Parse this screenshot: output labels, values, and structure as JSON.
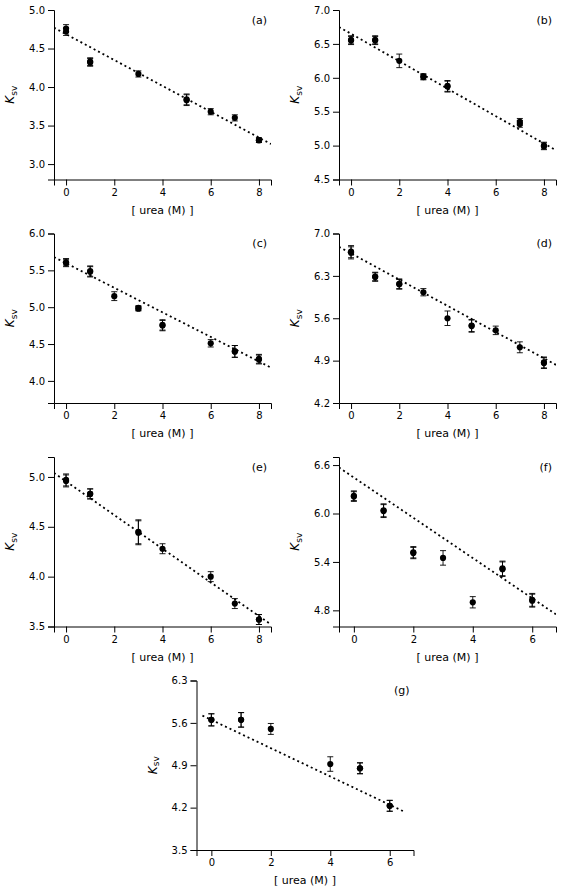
{
  "chart_data": [
    {
      "type": "scatter",
      "annotation": "(a)",
      "xlabel": "[ urea (M) ]",
      "ylabel": "Ksv",
      "series": [
        {
          "type": "scatter",
          "color": "black",
          "marker": "circle",
          "x": [
            0,
            0,
            1,
            1,
            3,
            5,
            5,
            6,
            7,
            8,
            8
          ],
          "values": [
            4.72,
            4.76,
            4.32,
            4.33,
            4.17,
            3.84,
            3.83,
            3.68,
            3.6,
            3.31,
            3.31
          ],
          "yerr": [
            0.05,
            0.05,
            0.05,
            0.05,
            0.04,
            0.07,
            0.07,
            0.04,
            0.04,
            0.03,
            0.03
          ]
        },
        {
          "type": "line",
          "color": "black",
          "line_style": "dotted",
          "x": [
            -0.5,
            8.5
          ],
          "values": [
            4.77,
            3.26
          ]
        }
      ],
      "xlim": [
        -0.5,
        8.5
      ],
      "xticks": [
        0,
        2,
        4,
        6,
        8
      ],
      "ylim": [
        2.8,
        5.0
      ],
      "yticks": [
        {
          "value": 3.0,
          "label": "3.0"
        },
        3.5,
        {
          "value": 4.0,
          "label": "4.0"
        },
        4.5,
        {
          "value": 5.0,
          "label": "5.0"
        }
      ]
    },
    {
      "type": "scatter",
      "annotation": "(b)",
      "xlabel": "[ urea (M) ]",
      "ylabel": "Ksv",
      "series": [
        {
          "type": "scatter",
          "color": "black",
          "marker": "circle",
          "x": [
            0,
            0,
            1,
            1,
            2,
            3,
            3,
            4,
            4,
            7,
            7,
            8,
            8
          ],
          "values": [
            6.55,
            6.56,
            6.56,
            6.55,
            6.25,
            6.01,
            6.02,
            5.87,
            5.88,
            5.35,
            5.32,
            5.0,
            4.99
          ],
          "yerr": [
            0.06,
            0.06,
            0.06,
            0.06,
            0.1,
            0.04,
            0.04,
            0.08,
            0.08,
            0.05,
            0.05,
            0.05,
            0.05
          ]
        },
        {
          "type": "line",
          "color": "black",
          "line_style": "dotted",
          "x": [
            -0.5,
            8.5
          ],
          "values": [
            6.75,
            4.93
          ]
        }
      ],
      "xlim": [
        -0.5,
        8.5
      ],
      "xticks": [
        0,
        2,
        4,
        6,
        8
      ],
      "ylim": [
        4.5,
        7.0
      ],
      "yticks": [
        4.5,
        {
          "value": 5.0,
          "label": "5.0"
        },
        5.5,
        {
          "value": 6.0,
          "label": "6.0"
        },
        6.5,
        {
          "value": 7.0,
          "label": "7.0"
        }
      ]
    },
    {
      "type": "scatter",
      "annotation": "(c)",
      "xlabel": "[ urea (M) ]",
      "ylabel": "Ksv",
      "series": [
        {
          "type": "scatter",
          "color": "black",
          "marker": "circle",
          "x": [
            0,
            0,
            1,
            1,
            2,
            3,
            3,
            4,
            4,
            6,
            7,
            7,
            8,
            8
          ],
          "values": [
            5.6,
            5.61,
            5.49,
            5.48,
            5.15,
            4.98,
            4.99,
            4.76,
            4.75,
            4.51,
            4.4,
            4.4,
            4.3,
            4.29
          ],
          "yerr": [
            0.05,
            0.05,
            0.07,
            0.07,
            0.06,
            0.03,
            0.03,
            0.07,
            0.07,
            0.05,
            0.08,
            0.08,
            0.06,
            0.06
          ]
        },
        {
          "type": "line",
          "color": "black",
          "line_style": "dotted",
          "x": [
            -0.5,
            8.5
          ],
          "values": [
            5.68,
            4.18
          ]
        }
      ],
      "xlim": [
        -0.5,
        8.5
      ],
      "xticks": [
        0,
        2,
        4,
        6,
        8
      ],
      "ylim": [
        3.7,
        6.0
      ],
      "yticks": [
        {
          "value": 4.0,
          "label": "4.0"
        },
        4.5,
        {
          "value": 5.0,
          "label": "5.0"
        },
        5.5,
        {
          "value": 6.0,
          "label": "6.0"
        }
      ]
    },
    {
      "type": "scatter",
      "annotation": "(d)",
      "xlabel": "[ urea (M) ]",
      "ylabel": "Ksv",
      "series": [
        {
          "type": "scatter",
          "color": "black",
          "marker": "circle",
          "x": [
            0,
            0,
            1,
            1,
            2,
            2,
            3,
            4,
            5,
            5,
            6,
            7,
            8,
            8
          ],
          "values": [
            6.7,
            6.68,
            6.28,
            6.29,
            6.17,
            6.16,
            6.03,
            5.6,
            5.48,
            5.47,
            5.4,
            5.12,
            4.87,
            4.86
          ],
          "yerr": [
            0.1,
            0.1,
            0.07,
            0.07,
            0.08,
            0.08,
            0.06,
            0.12,
            0.1,
            0.1,
            0.07,
            0.09,
            0.09,
            0.09
          ]
        },
        {
          "type": "line",
          "color": "black",
          "line_style": "dotted",
          "x": [
            -0.5,
            8.5
          ],
          "values": [
            6.78,
            4.83
          ]
        }
      ],
      "xlim": [
        -0.5,
        8.5
      ],
      "xticks": [
        0,
        2,
        4,
        6,
        8
      ],
      "ylim": [
        4.2,
        7.0
      ],
      "yticks": [
        4.2,
        4.9,
        5.6,
        6.3,
        {
          "value": 7.0,
          "label": "7.0"
        }
      ]
    },
    {
      "type": "scatter",
      "annotation": "(e)",
      "xlabel": "[ urea (M) ]",
      "ylabel": "Ksv",
      "series": [
        {
          "type": "scatter",
          "color": "black",
          "marker": "circle",
          "x": [
            0,
            0,
            1,
            1,
            3,
            3,
            4,
            6,
            7,
            8,
            8
          ],
          "values": [
            4.97,
            4.96,
            4.83,
            4.83,
            4.45,
            4.44,
            4.28,
            4.0,
            3.73,
            3.57,
            3.57
          ],
          "yerr": [
            0.06,
            0.06,
            0.05,
            0.05,
            0.12,
            0.12,
            0.05,
            0.05,
            0.05,
            0.05,
            0.05
          ]
        },
        {
          "type": "line",
          "color": "black",
          "line_style": "dotted",
          "x": [
            -0.5,
            8.5
          ],
          "values": [
            5.04,
            3.52
          ]
        }
      ],
      "xlim": [
        -0.5,
        8.5
      ],
      "xticks": [
        0,
        2,
        4,
        6,
        8
      ],
      "ylim": [
        3.5,
        5.2
      ],
      "yticks": [
        3.5,
        {
          "value": 4.0,
          "label": "4.0"
        },
        4.5,
        {
          "value": 5.0,
          "label": "5.0"
        }
      ]
    },
    {
      "type": "scatter",
      "annotation": "(f)",
      "xlabel": "[ urea (M) ]",
      "ylabel": "Ksv",
      "series": [
        {
          "type": "scatter",
          "color": "black",
          "marker": "circle",
          "x": [
            0,
            0,
            1,
            1,
            2,
            2,
            3,
            4,
            5,
            5,
            6,
            6
          ],
          "values": [
            6.22,
            6.21,
            6.04,
            6.03,
            5.52,
            5.51,
            5.45,
            4.9,
            5.32,
            5.31,
            4.93,
            4.92
          ],
          "yerr": [
            0.06,
            0.06,
            0.08,
            0.08,
            0.07,
            0.07,
            0.09,
            0.07,
            0.09,
            0.09,
            0.08,
            0.08
          ]
        },
        {
          "type": "line",
          "color": "black",
          "line_style": "dotted",
          "x": [
            -0.5,
            6.8
          ],
          "values": [
            6.57,
            4.75
          ]
        }
      ],
      "xlim": [
        -0.5,
        6.8
      ],
      "xticks": [
        0,
        2,
        4,
        6
      ],
      "ylim": [
        4.6,
        6.7
      ],
      "yticks": [
        4.8,
        5.4,
        {
          "value": 6.0,
          "label": "6.0"
        },
        6.6
      ]
    },
    {
      "type": "scatter",
      "annotation": "(g)",
      "xlabel": "[ urea (M) ]",
      "ylabel": "Ksv",
      "series": [
        {
          "type": "scatter",
          "color": "black",
          "marker": "circle",
          "x": [
            0,
            0,
            1,
            1,
            2,
            4,
            5,
            5,
            6,
            6
          ],
          "values": [
            5.65,
            5.65,
            5.65,
            5.65,
            5.5,
            4.92,
            4.85,
            4.85,
            4.23,
            4.23
          ],
          "yerr": [
            0.1,
            0.1,
            0.12,
            0.12,
            0.09,
            0.12,
            0.09,
            0.09,
            0.09,
            0.09
          ]
        },
        {
          "type": "line",
          "color": "black",
          "line_style": "dotted",
          "x": [
            -0.3,
            6.5
          ],
          "values": [
            5.72,
            4.13
          ]
        }
      ],
      "xlim": [
        -0.5,
        6.8
      ],
      "xticks": [
        0,
        2,
        4,
        6
      ],
      "ylim": [
        3.5,
        6.3
      ],
      "yticks": [
        3.5,
        4.2,
        4.9,
        5.6,
        6.3
      ]
    }
  ]
}
